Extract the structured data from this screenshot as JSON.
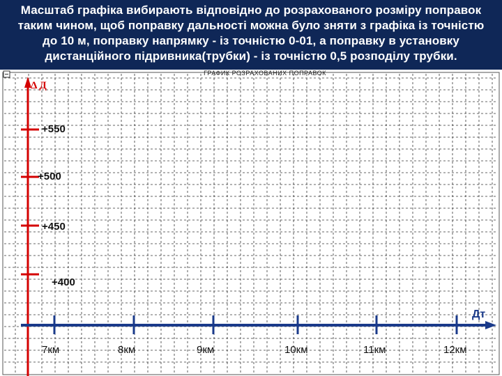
{
  "header": {
    "lines": [
      "Масштаб графіка вибирають відповідно до  розрахованого розміру поправок",
      "таким чином, щоб поправку дальності можна було зняти з графіка із точністю",
      "до 10 м, поправку напрямку - із точністю   0-01, а поправку в установку",
      "дистанційного підривника(трубки) - із точністю 0,5 розподілу трубки."
    ]
  },
  "graph": {
    "title": "ГРАФИК РОЗРАХОВАНИХ ПОПРАВОК",
    "y_axis_label": "Δ Д",
    "x_axis_label": "Дт",
    "y_ticks": [
      "+550",
      "+500",
      "+450",
      "+400"
    ],
    "x_ticks": [
      "7км",
      "8км",
      "9км",
      "10км",
      "11км",
      "12км"
    ]
  },
  "colors": {
    "header_bg": "#0f2757",
    "y_axis": "#d40000",
    "x_axis": "#1a3a8a",
    "grid": "#333333"
  }
}
